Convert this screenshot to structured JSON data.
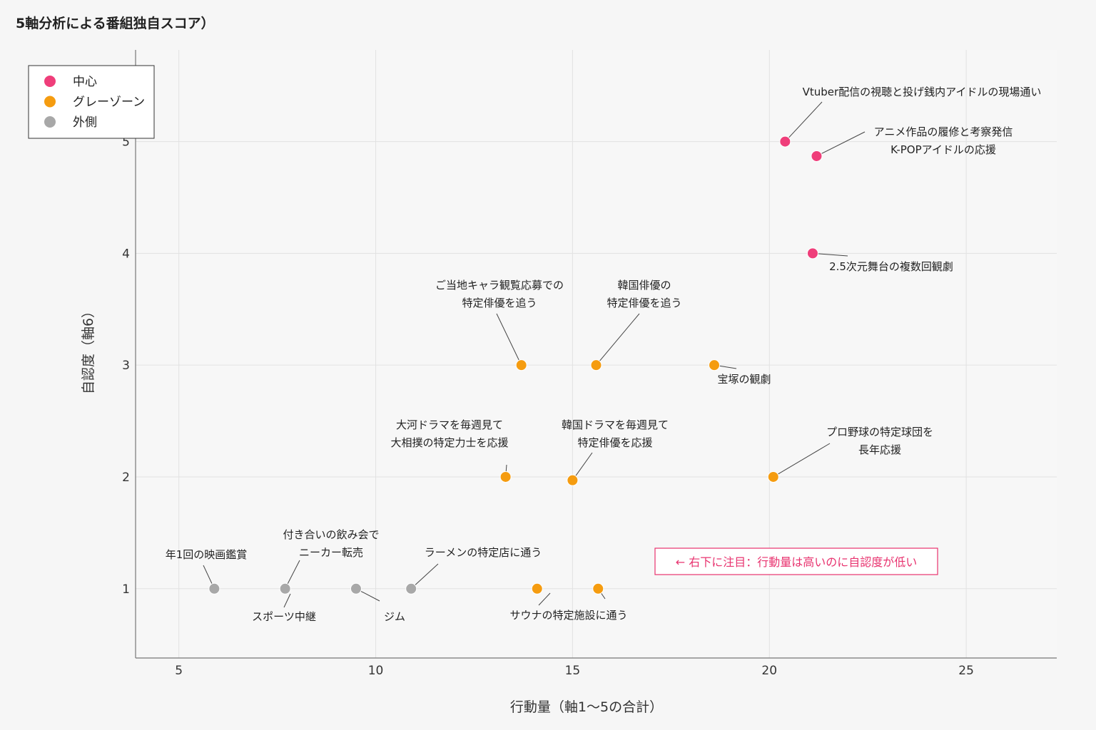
{
  "page": {
    "title": "5軸分析による番組独自スコア）"
  },
  "chart_data": {
    "type": "scatter",
    "title": "5軸分析による番組独自スコア）",
    "xlabel": "行動量（軸1〜5の合計）",
    "ylabel": "自認度（軸6）",
    "xlim": [
      3.9,
      27.3
    ],
    "ylim": [
      0.38,
      5.82
    ],
    "xticks": [
      5,
      10,
      15,
      20,
      25
    ],
    "yticks": [
      1,
      2,
      3,
      4,
      5
    ],
    "grid": true,
    "legend_position": "top-left",
    "series": [
      {
        "name": "中心",
        "color": "#ef3e7a"
      },
      {
        "name": "グレーゾーン",
        "color": "#f59c10"
      },
      {
        "name": "外側",
        "color": "#a8a8a8"
      }
    ],
    "points": [
      {
        "x": 20.4,
        "y": 5.0,
        "series": 0,
        "label": "Vtuber配信の視聴と投げ銭内アイドルの現場通い"
      },
      {
        "x": 21.2,
        "y": 4.87,
        "series": 0,
        "label": "アニメ作品の履修と考察発信\nK-POPアイドルの応援"
      },
      {
        "x": 21.1,
        "y": 4.0,
        "series": 0,
        "label": "2.5次元舞台の複数回観劇"
      },
      {
        "x": 13.7,
        "y": 3.0,
        "series": 1,
        "label": "ご当地キャラ観覧応募での\n特定俳優を追う"
      },
      {
        "x": 15.6,
        "y": 3.0,
        "series": 1,
        "label": "韓国俳優の\n特定俳優を追う"
      },
      {
        "x": 18.6,
        "y": 3.0,
        "series": 1,
        "label": "宝塚の観劇"
      },
      {
        "x": 13.3,
        "y": 2.0,
        "series": 1,
        "label": "大河ドラマを毎週見て\n大相撲の特定力士を応援"
      },
      {
        "x": 15.0,
        "y": 1.97,
        "series": 1,
        "label": "韓国ドラマを毎週見て\n特定俳優を応援"
      },
      {
        "x": 20.1,
        "y": 2.0,
        "series": 1,
        "label": "プロ野球の特定球団を\n長年応援"
      },
      {
        "x": 14.1,
        "y": 1.0,
        "series": 1,
        "label": ""
      },
      {
        "x": 15.65,
        "y": 1.0,
        "series": 1,
        "label": "サウナの特定施設に通う"
      },
      {
        "x": 5.9,
        "y": 1.0,
        "series": 2,
        "label": "年1回の映画鑑賞"
      },
      {
        "x": 7.7,
        "y": 1.0,
        "series": 2,
        "label": "付き合いの飲み会で\nニーカー転売"
      },
      {
        "x": 9.5,
        "y": 1.0,
        "series": 2,
        "label": "ジム"
      },
      {
        "x": 10.9,
        "y": 1.0,
        "series": 2,
        "label": "ラーメンの特定店に通う"
      },
      {
        "x": 7.7,
        "y": 0.93,
        "series": 2,
        "label": "スポーツ中継",
        "hidden_marker": true
      }
    ],
    "annotation": "← 右下に注目：行動量は高いのに自認度が低い",
    "annotation_color": "#e8336f"
  }
}
